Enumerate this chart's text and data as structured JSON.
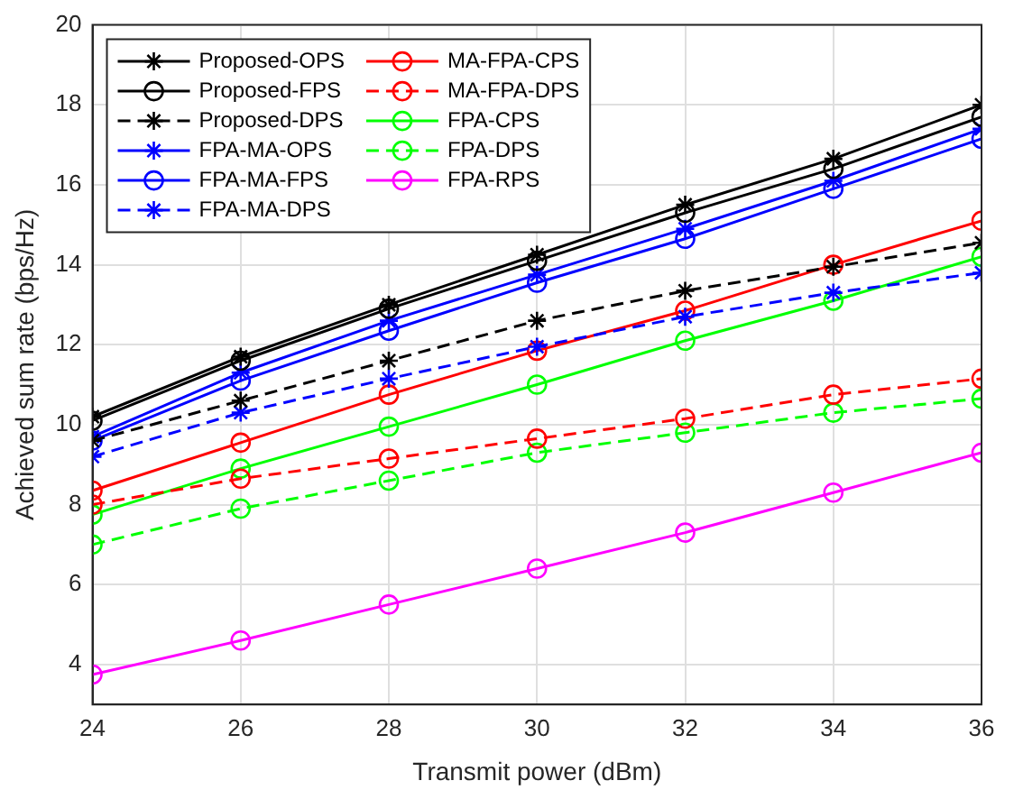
{
  "chart_data": {
    "type": "line",
    "xlabel": "Transmit power (dBm)",
    "ylabel": "Achieved sum rate (bps/Hz)",
    "x": [
      24,
      26,
      28,
      30,
      32,
      34,
      36
    ],
    "xlim": [
      24,
      36
    ],
    "xticks": [
      24,
      26,
      28,
      30,
      32,
      34,
      36
    ],
    "ylim": [
      3,
      20
    ],
    "yticks": [
      4,
      6,
      8,
      10,
      12,
      14,
      16,
      18,
      20
    ],
    "grid": true,
    "legend": "top left",
    "series": [
      {
        "name": "Proposed-OPS",
        "color": "#000000",
        "marker": "cross",
        "line_style": "solid",
        "values": [
          10.2,
          11.7,
          13.0,
          14.25,
          15.5,
          16.65,
          18.0
        ]
      },
      {
        "name": "Proposed-FPS",
        "color": "#000000",
        "marker": "circle",
        "line_style": "solid",
        "values": [
          10.1,
          11.6,
          12.9,
          14.1,
          15.3,
          16.4,
          17.7
        ]
      },
      {
        "name": "Proposed-DPS",
        "color": "#000000",
        "marker": "cross",
        "line_style": "dashed",
        "values": [
          9.6,
          10.6,
          11.6,
          12.6,
          13.35,
          13.95,
          14.55
        ]
      },
      {
        "name": "FPA-MA-OPS",
        "color": "#0000ff",
        "marker": "cross",
        "line_style": "solid",
        "values": [
          9.7,
          11.3,
          12.6,
          13.75,
          14.9,
          16.1,
          17.4
        ]
      },
      {
        "name": "FPA-MA-FPS",
        "color": "#0000ff",
        "marker": "circle",
        "line_style": "solid",
        "values": [
          9.6,
          11.1,
          12.35,
          13.55,
          14.65,
          15.9,
          17.15
        ]
      },
      {
        "name": "FPA-MA-DPS",
        "color": "#0000ff",
        "marker": "cross",
        "line_style": "dashed",
        "values": [
          9.2,
          10.3,
          11.15,
          11.95,
          12.7,
          13.3,
          13.8
        ]
      },
      {
        "name": "MA-FPA-CPS",
        "color": "#ff0000",
        "marker": "circle",
        "line_style": "solid",
        "values": [
          8.35,
          9.55,
          10.75,
          11.85,
          12.85,
          14.0,
          15.1
        ]
      },
      {
        "name": "MA-FPA-DPS",
        "color": "#ff0000",
        "marker": "circle",
        "line_style": "dashed",
        "values": [
          8.0,
          8.65,
          9.15,
          9.65,
          10.15,
          10.75,
          11.15
        ]
      },
      {
        "name": "FPA-CPS",
        "color": "#00ff00",
        "marker": "circle",
        "line_style": "solid",
        "values": [
          7.75,
          8.9,
          9.95,
          11.0,
          12.1,
          13.1,
          14.2
        ]
      },
      {
        "name": "FPA-DPS",
        "color": "#00ff00",
        "marker": "circle",
        "line_style": "dashed",
        "values": [
          7.0,
          7.9,
          8.6,
          9.3,
          9.8,
          10.3,
          10.65
        ]
      },
      {
        "name": "FPA-RPS",
        "color": "#ff00ff",
        "marker": "circle",
        "line_style": "solid",
        "values": [
          3.75,
          4.6,
          5.5,
          6.4,
          7.3,
          8.3,
          9.3
        ]
      }
    ]
  }
}
